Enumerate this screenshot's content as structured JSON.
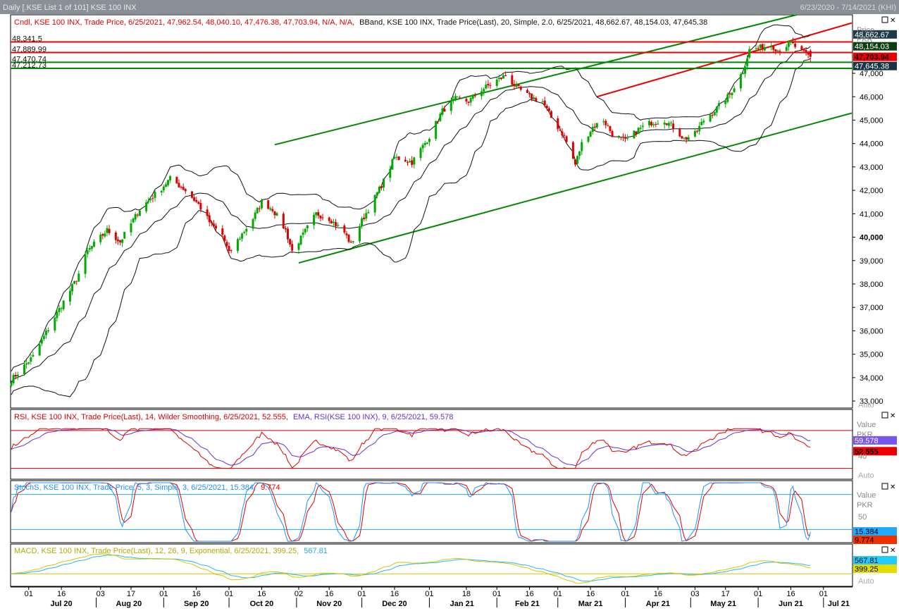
{
  "window": {
    "title": "Daily [.KSE List 1 of 101] KSE 100 INX",
    "range": "6/23/2020 - 7/14/2021 (KHI)"
  },
  "colors": {
    "up": "#00aa00",
    "down": "#dd0000",
    "trend_green": "#008800",
    "trend_red": "#ee0000",
    "band": "#111111",
    "rsi": "#dd0000",
    "rsi_ema": "#6633cc",
    "stoch_k": "#1e90ff",
    "stoch_d": "#dd0000",
    "macd": "#22bbee",
    "macd_signal": "#d4c800",
    "header_bg": "#8a9098"
  },
  "panels": {
    "price": {
      "legend_cndl": "Cndl, KSE 100 INX, Trade Price, 6/25/2021, 47,962.54, 48,040.10, 47,476.38, 47,703.94, N/A, N/A,",
      "legend_bband": "BBand, KSE 100 INX, Trade Price(Last), 20, Simple, 2.0, 6/25/2021, 48,662.67, 48,154.03, 47,645.38",
      "axis_title_1": "Price",
      "axis_title_2": "PKR",
      "auto": "Auto",
      "ticks": [
        {
          "v": 47000,
          "t": "47,000"
        },
        {
          "v": 46000,
          "t": "46,000"
        },
        {
          "v": 45000,
          "t": "45,000"
        },
        {
          "v": 44000,
          "t": "44,000"
        },
        {
          "v": 43000,
          "t": "43,000"
        },
        {
          "v": 42000,
          "t": "42,000"
        },
        {
          "v": 41000,
          "t": "41,000"
        },
        {
          "v": 40000,
          "t": "40,000"
        },
        {
          "v": 39000,
          "t": "39,000"
        },
        {
          "v": 38000,
          "t": "38,000"
        },
        {
          "v": 37000,
          "t": "37,000"
        },
        {
          "v": 36000,
          "t": "36,000"
        },
        {
          "v": 35000,
          "t": "35,000"
        },
        {
          "v": 34000,
          "t": "34,000"
        },
        {
          "v": 33000,
          "t": "33,000"
        }
      ],
      "badges": [
        {
          "v": 48662.67,
          "t": "48,662.67",
          "bg": "#1f3a4a",
          "fg": "#ffffff"
        },
        {
          "v": 48154.03,
          "t": "48,154.03",
          "bg": "#0e3d12",
          "fg": "#ffffff"
        },
        {
          "v": 47703.94,
          "t": "47,703.94",
          "bg": "#ee0000",
          "fg": "#000000"
        },
        {
          "v": 47645.38,
          "t": "47,645.38",
          "bg": "#173442",
          "fg": "#ffffff"
        }
      ],
      "levels": [
        {
          "v": 48341.5,
          "t": "48,341.5",
          "color": "#ee0000"
        },
        {
          "v": 47889.99,
          "t": "47,889.99",
          "color": "#ee0000"
        },
        {
          "v": 47470.74,
          "t": "47,470.74",
          "color": "#008800"
        },
        {
          "v": 47212.73,
          "t": "47,212.73",
          "color": "#008800"
        }
      ]
    },
    "rsi": {
      "legend_rsi": "RSI, KSE 100 INX, Trade Price(Last), 14, Wilder Smoothing, 6/25/2021, 52.555,",
      "legend_ema": "EMA, RSI(KSE 100 INX), 9, 6/25/2021, 59.578",
      "axis_title_1": "Value",
      "axis_title_2": "PKR",
      "tick": "40",
      "auto": "Auto",
      "badges": [
        {
          "v": 59.578,
          "t": "59.578",
          "bg": "#7755ee",
          "fg": "#ffffff"
        },
        {
          "v": 52.555,
          "t": "52.555",
          "bg": "#ee0000",
          "fg": "#000000"
        }
      ]
    },
    "stoch": {
      "legend": "StochS, KSE 100 INX, Trade Price, 5, 3, Simple, 3, 6/25/2021, 15.384,",
      "legend_d": "9.774",
      "axis_title_1": "Value",
      "axis_title_2": "PKR",
      "tick": "50",
      "badges": [
        {
          "v": 15.384,
          "t": "15.384",
          "bg": "#22aaff",
          "fg": "#000000"
        },
        {
          "v": 9.774,
          "t": "9.774",
          "bg": "#ee3300",
          "fg": "#000000"
        }
      ]
    },
    "macd": {
      "legend": "MACD, KSE 100 INX, Trade Price(Last), 12, 26, 9, Exponential, 6/25/2021, 399.25,",
      "legend_signal": "567.81",
      "auto": "Auto",
      "badges": [
        {
          "v": 567.81,
          "t": "567.81",
          "bg": "#22ccff",
          "fg": "#000000"
        },
        {
          "v": 399.25,
          "t": "399.25",
          "bg": "#e6dd00",
          "fg": "#000000"
        }
      ]
    }
  },
  "chart_data": {
    "type": "candlestick",
    "title": "KSE 100 INX",
    "x_range": [
      "2020-06-23",
      "2021-07-14"
    ],
    "y_range": [
      32700,
      49500
    ],
    "day_ticks": [
      {
        "d": "2020-07-01",
        "t": "01"
      },
      {
        "d": "2020-07-16",
        "t": "16"
      },
      {
        "d": "2020-08-03",
        "t": "03"
      },
      {
        "d": "2020-08-17",
        "t": "17"
      },
      {
        "d": "2020-09-01",
        "t": "01"
      },
      {
        "d": "2020-09-16",
        "t": "16"
      },
      {
        "d": "2020-10-01",
        "t": "01"
      },
      {
        "d": "2020-10-16",
        "t": "16"
      },
      {
        "d": "2020-11-02",
        "t": "02"
      },
      {
        "d": "2020-11-16",
        "t": "16"
      },
      {
        "d": "2020-12-01",
        "t": "01"
      },
      {
        "d": "2020-12-16",
        "t": "16"
      },
      {
        "d": "2021-01-01",
        "t": "01"
      },
      {
        "d": "2021-01-18",
        "t": "18"
      },
      {
        "d": "2021-02-01",
        "t": "01"
      },
      {
        "d": "2021-02-16",
        "t": "16"
      },
      {
        "d": "2021-03-01",
        "t": "01"
      },
      {
        "d": "2021-03-16",
        "t": "16"
      },
      {
        "d": "2021-04-01",
        "t": "01"
      },
      {
        "d": "2021-04-16",
        "t": "16"
      },
      {
        "d": "2021-05-03",
        "t": "03"
      },
      {
        "d": "2021-05-17",
        "t": "17"
      },
      {
        "d": "2021-06-01",
        "t": "01"
      },
      {
        "d": "2021-06-16",
        "t": "16"
      },
      {
        "d": "2021-07-01",
        "t": "01"
      }
    ],
    "month_labels": [
      {
        "d": "2020-07-16",
        "t": "Jul 20"
      },
      {
        "d": "2020-08-16",
        "t": "Aug 20"
      },
      {
        "d": "2020-09-16",
        "t": "Sep 20"
      },
      {
        "d": "2020-10-16",
        "t": "Oct 20"
      },
      {
        "d": "2020-11-16",
        "t": "Nov 20"
      },
      {
        "d": "2020-12-16",
        "t": "Dec 20"
      },
      {
        "d": "2021-01-16",
        "t": "Jan 21"
      },
      {
        "d": "2021-02-15",
        "t": "Feb 21"
      },
      {
        "d": "2021-03-16",
        "t": "Mar 21"
      },
      {
        "d": "2021-04-16",
        "t": "Apr 21"
      },
      {
        "d": "2021-05-16",
        "t": "May 21"
      },
      {
        "d": "2021-06-16",
        "t": "Jun 21"
      },
      {
        "d": "2021-07-08",
        "t": "Jul 21"
      }
    ],
    "close_anchors": [
      [
        "2020-06-23",
        33900
      ],
      [
        "2020-07-03",
        34900
      ],
      [
        "2020-07-13",
        36600
      ],
      [
        "2020-07-23",
        38200
      ],
      [
        "2020-07-28",
        39400
      ],
      [
        "2020-08-06",
        40300
      ],
      [
        "2020-08-12",
        39800
      ],
      [
        "2020-08-21",
        41200
      ],
      [
        "2020-08-31",
        42100
      ],
      [
        "2020-09-04",
        42500
      ],
      [
        "2020-09-11",
        42000
      ],
      [
        "2020-09-17",
        41400
      ],
      [
        "2020-09-23",
        40500
      ],
      [
        "2020-09-28",
        40100
      ],
      [
        "2020-10-01",
        39300
      ],
      [
        "2020-10-06",
        40000
      ],
      [
        "2020-10-12",
        40800
      ],
      [
        "2020-10-16",
        41500
      ],
      [
        "2020-10-21",
        41200
      ],
      [
        "2020-10-27",
        40300
      ],
      [
        "2020-10-30",
        39400
      ],
      [
        "2020-11-04",
        40100
      ],
      [
        "2020-11-10",
        41000
      ],
      [
        "2020-11-16",
        40800
      ],
      [
        "2020-11-23",
        40200
      ],
      [
        "2020-11-26",
        39700
      ],
      [
        "2020-12-01",
        40700
      ],
      [
        "2020-12-07",
        41700
      ],
      [
        "2020-12-11",
        42400
      ],
      [
        "2020-12-16",
        43400
      ],
      [
        "2020-12-21",
        43300
      ],
      [
        "2020-12-24",
        43200
      ],
      [
        "2021-01-01",
        44300
      ],
      [
        "2021-01-07",
        45400
      ],
      [
        "2021-01-13",
        45900
      ],
      [
        "2021-01-19",
        45800
      ],
      [
        "2021-01-25",
        46300
      ],
      [
        "2021-02-01",
        46700
      ],
      [
        "2021-02-05",
        46900
      ],
      [
        "2021-02-10",
        46400
      ],
      [
        "2021-02-16",
        46000
      ],
      [
        "2021-02-22",
        45800
      ],
      [
        "2021-02-26",
        45100
      ],
      [
        "2021-03-04",
        44300
      ],
      [
        "2021-03-09",
        43100
      ],
      [
        "2021-03-12",
        44000
      ],
      [
        "2021-03-17",
        44700
      ],
      [
        "2021-03-22",
        45000
      ],
      [
        "2021-03-26",
        44400
      ],
      [
        "2021-04-01",
        44100
      ],
      [
        "2021-04-07",
        44600
      ],
      [
        "2021-04-13",
        44900
      ],
      [
        "2021-04-19",
        45000
      ],
      [
        "2021-04-23",
        44700
      ],
      [
        "2021-04-28",
        44200
      ],
      [
        "2021-05-03",
        44400
      ],
      [
        "2021-05-07",
        45000
      ],
      [
        "2021-05-13",
        45500
      ],
      [
        "2021-05-19",
        46100
      ],
      [
        "2021-05-25",
        47100
      ],
      [
        "2021-05-28",
        48000
      ],
      [
        "2021-06-02",
        48100
      ],
      [
        "2021-06-07",
        48200
      ],
      [
        "2021-06-10",
        48000
      ],
      [
        "2021-06-16",
        48300
      ],
      [
        "2021-06-21",
        47900
      ],
      [
        "2021-06-25",
        47703.94
      ]
    ],
    "last_candle": {
      "date": "2021-06-25",
      "open": 47962.54,
      "high": 48040.1,
      "low": 47476.38,
      "close": 47703.94
    },
    "bollinger_last": {
      "upper": 48662.67,
      "middle": 48154.03,
      "lower": 47645.38
    },
    "trendlines": [
      {
        "color": "green",
        "from": [
          "2020-10-22",
          43950
        ],
        "to": [
          "2021-06-23",
          49600
        ]
      },
      {
        "color": "green",
        "from": [
          "2020-11-02",
          38900
        ],
        "to": [
          "2021-07-14",
          45300
        ]
      },
      {
        "color": "red",
        "from": [
          "2021-03-19",
          46000
        ],
        "to": [
          "2021-07-14",
          49150
        ]
      }
    ],
    "rsi": {
      "period": 14,
      "smoothing": "Wilder",
      "last": 52.555,
      "ema_period": 9,
      "ema_last": 59.578,
      "levels": [
        70,
        30
      ],
      "range": [
        20,
        90
      ]
    },
    "stoch": {
      "k_period": 5,
      "slowing": 3,
      "d_period": 3,
      "k_last": 15.384,
      "d_last": 9.774,
      "levels": [
        80,
        20
      ],
      "range": [
        0,
        100
      ]
    },
    "macd": {
      "fast": 12,
      "slow": 26,
      "signal": 9,
      "type": "Exponential",
      "macd_last": 399.25,
      "signal_last": 567.81
    }
  }
}
